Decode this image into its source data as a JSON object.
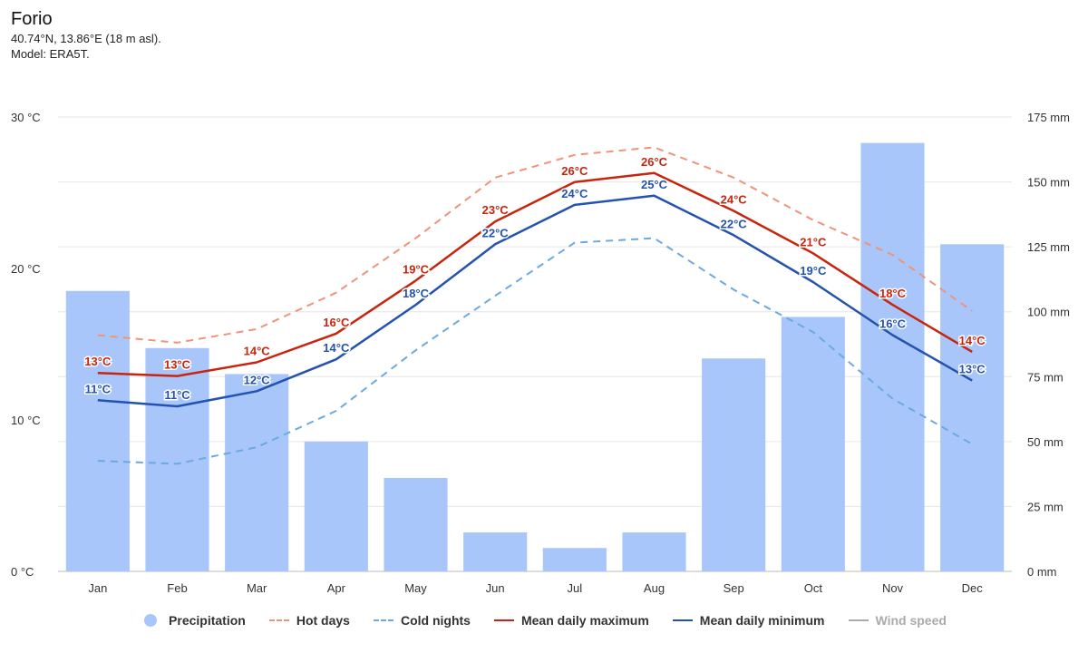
{
  "header": {
    "title": "Forio",
    "coords": "40.74°N, 13.86°E (18 m asl).",
    "model": "Model: ERA5T."
  },
  "colors": {
    "precip": "#a8c6fa",
    "hot": "#f0937a",
    "cold": "#6aaae0",
    "max": "#c8250e",
    "min": "#2452b0",
    "wind": "#aaaaaa",
    "grid": "#e6e6e6"
  },
  "legend": [
    {
      "label": "Precipitation",
      "kind": "dot",
      "color": "#a8c6fa",
      "active": true
    },
    {
      "label": "Hot days",
      "kind": "dashed",
      "color": "#f0937a",
      "active": true
    },
    {
      "label": "Cold nights",
      "kind": "dashed",
      "color": "#6aaae0",
      "active": true
    },
    {
      "label": "Mean daily maximum",
      "kind": "solid",
      "color": "#c8250e",
      "active": true
    },
    {
      "label": "Mean daily minimum",
      "kind": "solid",
      "color": "#2452b0",
      "active": true
    },
    {
      "label": "Wind speed",
      "kind": "solid",
      "color": "#aaaaaa",
      "active": false
    }
  ],
  "chart_data": {
    "type": "bar",
    "categories": [
      "Jan",
      "Feb",
      "Mar",
      "Apr",
      "May",
      "Jun",
      "Jul",
      "Aug",
      "Sep",
      "Oct",
      "Nov",
      "Dec"
    ],
    "y_left": {
      "unit": "°C",
      "ylim": [
        0,
        30
      ],
      "ticks": [
        "0 °C",
        "10 °C",
        "20 °C",
        "30 °C"
      ]
    },
    "y_right": {
      "unit": "mm",
      "ylim": [
        0,
        175
      ],
      "ticks": [
        "0 mm",
        "25 mm",
        "50 mm",
        "75 mm",
        "100 mm",
        "125 mm",
        "150 mm",
        "175 mm"
      ]
    },
    "grid": true,
    "legend_position": "bottom",
    "series": [
      {
        "name": "Precipitation",
        "type": "bar",
        "axis": "right",
        "values": [
          108,
          86,
          76,
          50,
          36,
          15,
          9,
          15,
          82,
          98,
          165,
          126
        ]
      },
      {
        "name": "Hot days",
        "type": "line",
        "style": "dashed",
        "axis": "left",
        "values": [
          15.6,
          15.1,
          16.0,
          18.4,
          22.0,
          26.0,
          27.5,
          28.0,
          26.0,
          23.2,
          20.9,
          17.2
        ]
      },
      {
        "name": "Cold nights",
        "type": "line",
        "style": "dashed",
        "axis": "left",
        "values": [
          7.3,
          7.1,
          8.2,
          10.6,
          14.6,
          18.2,
          21.7,
          22.0,
          18.6,
          15.8,
          11.4,
          8.4
        ]
      },
      {
        "name": "Mean daily maximum",
        "type": "line",
        "style": "solid",
        "axis": "left",
        "values": [
          13.1,
          12.9,
          13.8,
          15.7,
          19.2,
          23.1,
          25.7,
          26.3,
          23.8,
          21.0,
          17.6,
          14.5
        ],
        "labels": [
          "13°C",
          "13°C",
          "14°C",
          "16°C",
          "19°C",
          "23°C",
          "26°C",
          "26°C",
          "24°C",
          "21°C",
          "18°C",
          "14°C"
        ]
      },
      {
        "name": "Mean daily minimum",
        "type": "line",
        "style": "solid",
        "axis": "left",
        "values": [
          11.3,
          10.9,
          11.9,
          14.0,
          17.6,
          21.6,
          24.2,
          24.8,
          22.2,
          19.1,
          15.6,
          12.6
        ],
        "labels": [
          "11°C",
          "11°C",
          "12°C",
          "14°C",
          "18°C",
          "22°C",
          "24°C",
          "25°C",
          "22°C",
          "19°C",
          "16°C",
          "13°C"
        ]
      }
    ]
  }
}
